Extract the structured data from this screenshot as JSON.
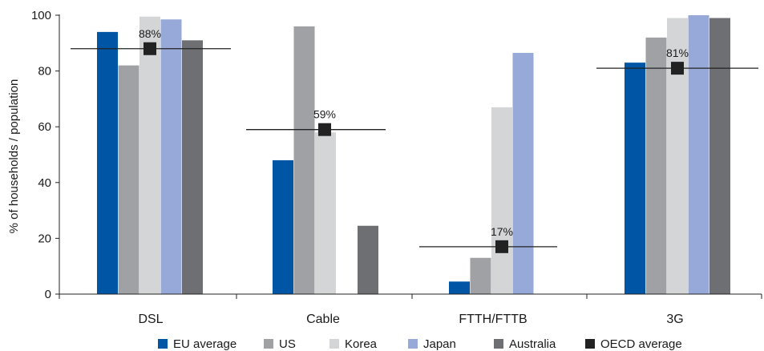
{
  "chart_data": {
    "type": "bar",
    "title": "",
    "xlabel": "",
    "ylabel": "% of households / population",
    "ylim": [
      0,
      100
    ],
    "yticks": [
      "0",
      "20",
      "40",
      "60",
      "80",
      "100"
    ],
    "grid": false,
    "legend_position": "bottom",
    "categories": [
      "DSL",
      "Cable",
      "FTTH/FTTB",
      "3G"
    ],
    "series": [
      {
        "name": "EU average",
        "color": "#0055a4",
        "values": [
          94,
          48,
          4.5,
          83
        ]
      },
      {
        "name": "US",
        "color": "#a0a1a5",
        "values": [
          82,
          96,
          13,
          92
        ]
      },
      {
        "name": "Korea",
        "color": "#d4d5d7",
        "values": [
          99.5,
          58,
          67,
          99
        ]
      },
      {
        "name": "Japan",
        "color": "#97a9d8",
        "values": [
          98.5,
          null,
          86.5,
          100
        ]
      },
      {
        "name": "Australia",
        "color": "#6e6f72",
        "values": [
          91,
          24.5,
          null,
          99
        ]
      }
    ],
    "reference": {
      "name": "OECD average",
      "color": "#222222",
      "values": [
        88,
        59,
        17,
        81
      ],
      "labels": [
        "88%",
        "59%",
        "17%",
        "81%"
      ]
    }
  }
}
